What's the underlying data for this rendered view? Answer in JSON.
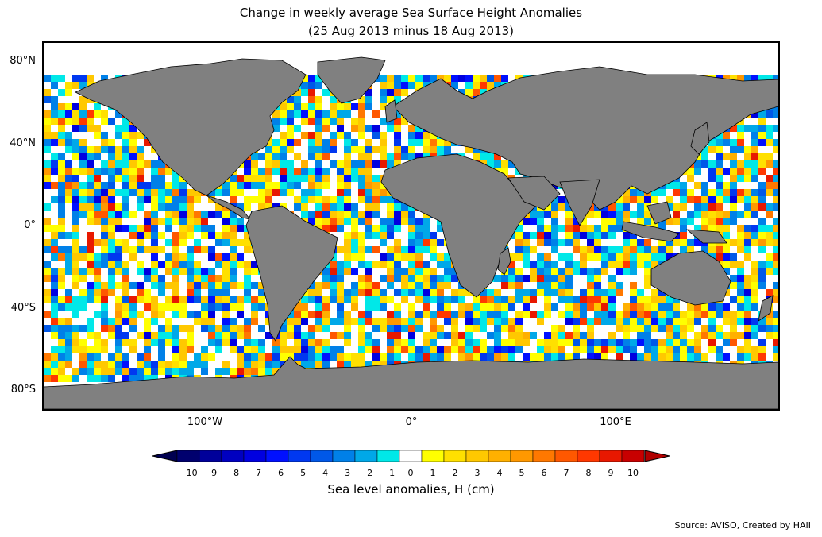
{
  "title_line1": "Change in weekly average Sea Surface Height Anomalies",
  "title_line2": "(25 Aug 2013 minus 18 Aug 2013)",
  "lat_labels": [
    "80°N",
    "40°N",
    "0°",
    "40°S",
    "80°S"
  ],
  "lon_labels": [
    "100°W",
    "0°",
    "100°E"
  ],
  "colorbar": {
    "label": "Sea level anomalies, H (cm)",
    "ticks": [
      "−10",
      "−9",
      "−8",
      "−7",
      "−6",
      "−5",
      "−4",
      "−3",
      "−2",
      "−1",
      "0",
      "1",
      "2",
      "3",
      "4",
      "5",
      "6",
      "7",
      "8",
      "9",
      "10"
    ],
    "colors": [
      "#00006e",
      "#00009a",
      "#0000c0",
      "#0000e0",
      "#0010ff",
      "#0038f0",
      "#0058e8",
      "#0080e8",
      "#00a8e8",
      "#00e8e8",
      "#ffffff",
      "#ffff00",
      "#ffe000",
      "#ffc800",
      "#ffb000",
      "#ff9800",
      "#ff7800",
      "#ff5800",
      "#ff3800",
      "#e81800",
      "#c80000"
    ],
    "under_color": "#000050",
    "over_color": "#b00000"
  },
  "land_color": "#808080",
  "source": "Source: AVISO, Created by HAII"
}
